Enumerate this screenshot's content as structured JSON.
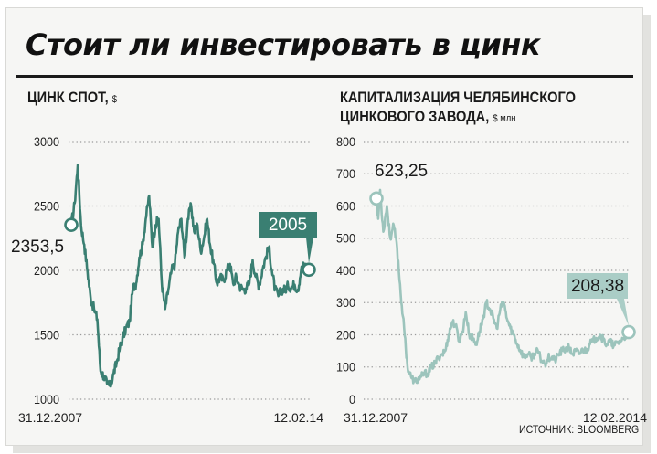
{
  "headline": "Стоит ли инвестировать в цинк",
  "source": "ИСТОЧНИК: BLOOMBERG",
  "chart_data": [
    {
      "type": "line",
      "title": "ЦИНК СПОТ",
      "unit": "$",
      "ylim": [
        1000,
        3000
      ],
      "yticks": [
        1000,
        1500,
        2000,
        2500,
        3000
      ],
      "x_start_label": "31.12.2007",
      "x_end_label": "12.02.14",
      "grid": true,
      "color": "#3a7f72",
      "label_start": "2353,5",
      "label_end": "2005",
      "series": [
        {
          "x": [
            "2007-12-31",
            "2008-02-01",
            "2008-03-01",
            "2008-04-01",
            "2008-05-01",
            "2008-06-01",
            "2008-07-01",
            "2008-08-01",
            "2008-09-01",
            "2008-10-01",
            "2008-11-01",
            "2008-12-01",
            "2009-01-01",
            "2009-02-01",
            "2009-03-01",
            "2009-04-01",
            "2009-05-01",
            "2009-06-01",
            "2009-07-01",
            "2009-08-01",
            "2009-09-01",
            "2009-10-01",
            "2009-11-01",
            "2009-12-01",
            "2010-01-01",
            "2010-02-01",
            "2010-03-01",
            "2010-04-01",
            "2010-05-01",
            "2010-06-01",
            "2010-07-01",
            "2010-08-01",
            "2010-09-01",
            "2010-10-01",
            "2010-11-01",
            "2010-12-01",
            "2011-01-01",
            "2011-02-01",
            "2011-03-01",
            "2011-04-01",
            "2011-05-01",
            "2011-06-01",
            "2011-07-01",
            "2011-08-01",
            "2011-09-01",
            "2011-10-01",
            "2011-11-01",
            "2011-12-01",
            "2012-01-01",
            "2012-02-01",
            "2012-03-01",
            "2012-04-01",
            "2012-05-01",
            "2012-06-01",
            "2012-07-01",
            "2012-08-01",
            "2012-09-01",
            "2012-10-01",
            "2012-11-01",
            "2012-12-01",
            "2013-01-01",
            "2013-02-01",
            "2013-03-01",
            "2013-04-01",
            "2013-05-01",
            "2013-06-01",
            "2013-07-01",
            "2013-08-01",
            "2013-09-01",
            "2013-10-01",
            "2013-11-01",
            "2013-12-01",
            "2014-01-01",
            "2014-02-12"
          ],
          "y": [
            2353.5,
            2520,
            2820,
            2350,
            2200,
            1990,
            1780,
            1700,
            1620,
            1220,
            1180,
            1120,
            1100,
            1200,
            1280,
            1400,
            1480,
            1560,
            1600,
            1860,
            1900,
            2100,
            2200,
            2400,
            2580,
            2180,
            2350,
            2400,
            1900,
            1700,
            1850,
            2000,
            2050,
            2300,
            2400,
            2100,
            2400,
            2500,
            2300,
            2350,
            2150,
            2250,
            2400,
            2180,
            2050,
            1900,
            1950,
            1920,
            2000,
            2050,
            1900,
            1950,
            1880,
            1850,
            1860,
            1900,
            2080,
            1950,
            1880,
            2000,
            2100,
            2180,
            2000,
            1850,
            1800,
            1850,
            1850,
            1880,
            1870,
            1890,
            1850,
            2000,
            2050,
            2005
          ]
        }
      ]
    },
    {
      "type": "line",
      "title_lines": [
        "КАПИТАЛИЗАЦИЯ ЧЕЛЯБИНСКОГО",
        "ЦИНКОВОГО ЗАВОДА"
      ],
      "unit": "$ млн",
      "ylim": [
        0,
        800
      ],
      "yticks": [
        0,
        100,
        200,
        300,
        400,
        500,
        600,
        700,
        800
      ],
      "x_start_label": "31.12.2007",
      "x_end_label": "12.02.2014",
      "grid": true,
      "color": "#9cc4bc",
      "label_start": "623,25",
      "label_end": "208,38",
      "series": [
        {
          "x": [
            "2007-12-31",
            "2008-01-15",
            "2008-02-01",
            "2008-03-01",
            "2008-04-01",
            "2008-05-01",
            "2008-06-01",
            "2008-07-01",
            "2008-08-01",
            "2008-09-01",
            "2008-10-01",
            "2008-11-01",
            "2008-12-01",
            "2009-01-01",
            "2009-02-01",
            "2009-03-01",
            "2009-04-01",
            "2009-05-01",
            "2009-06-01",
            "2009-07-01",
            "2009-08-01",
            "2009-09-01",
            "2009-10-01",
            "2009-11-01",
            "2009-12-01",
            "2010-01-01",
            "2010-02-01",
            "2010-03-01",
            "2010-04-01",
            "2010-05-01",
            "2010-06-01",
            "2010-07-01",
            "2010-08-01",
            "2010-09-01",
            "2010-10-01",
            "2010-11-01",
            "2010-12-01",
            "2011-01-01",
            "2011-02-01",
            "2011-03-01",
            "2011-04-01",
            "2011-05-01",
            "2011-06-01",
            "2011-07-01",
            "2011-08-01",
            "2011-09-01",
            "2011-10-01",
            "2011-11-01",
            "2011-12-01",
            "2012-01-01",
            "2012-02-01",
            "2012-03-01",
            "2012-04-01",
            "2012-05-01",
            "2012-06-01",
            "2012-07-01",
            "2012-08-01",
            "2012-09-01",
            "2012-10-01",
            "2012-11-01",
            "2012-12-01",
            "2013-01-01",
            "2013-02-01",
            "2013-03-01",
            "2013-04-01",
            "2013-05-01",
            "2013-06-01",
            "2013-07-01",
            "2013-08-01",
            "2013-09-01",
            "2013-10-01",
            "2013-11-01",
            "2013-12-01",
            "2014-01-01",
            "2014-02-12"
          ],
          "y": [
            623.25,
            560,
            650,
            520,
            600,
            500,
            540,
            470,
            330,
            220,
            100,
            70,
            55,
            60,
            70,
            80,
            80,
            100,
            110,
            130,
            140,
            150,
            200,
            240,
            230,
            180,
            210,
            270,
            200,
            190,
            170,
            210,
            250,
            300,
            280,
            250,
            220,
            280,
            300,
            250,
            220,
            200,
            170,
            150,
            130,
            140,
            130,
            140,
            150,
            120,
            110,
            130,
            130,
            120,
            140,
            150,
            155,
            160,
            140,
            150,
            140,
            155,
            150,
            170,
            180,
            190,
            200,
            185,
            170,
            180,
            165,
            175,
            180,
            190,
            208.38
          ]
        }
      ]
    }
  ]
}
